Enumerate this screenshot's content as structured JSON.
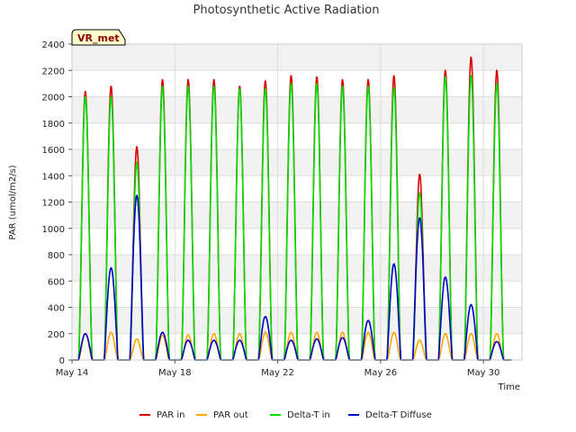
{
  "chart_data": {
    "type": "line",
    "title": "Photosynthetic Active Radiation",
    "xlabel": "Time",
    "ylabel": "PAR (umol/m2/s)",
    "badge": "VR_met",
    "xlim": [
      14,
      31.5
    ],
    "ylim": [
      0,
      2400
    ],
    "yticks": [
      0,
      200,
      400,
      600,
      800,
      1000,
      1200,
      1400,
      1600,
      1800,
      2000,
      2200,
      2400
    ],
    "xticks": [
      {
        "value": 14,
        "label": "May 14"
      },
      {
        "value": 18,
        "label": "May 18"
      },
      {
        "value": 22,
        "label": "May 22"
      },
      {
        "value": 26,
        "label": "May 26"
      },
      {
        "value": 30,
        "label": "May 30"
      }
    ],
    "grid": true,
    "legend_position": "bottom",
    "days": [
      14.5,
      15.5,
      16.5,
      17.5,
      18.5,
      19.5,
      20.5,
      21.5,
      22.5,
      23.5,
      24.5,
      25.5,
      26.5,
      27.5,
      28.5,
      29.5,
      30.5
    ],
    "series": [
      {
        "name": "PAR in",
        "color": "#dd0000",
        "values": [
          2040,
          2080,
          1620,
          2130,
          2130,
          2130,
          2080,
          2120,
          2160,
          2150,
          2130,
          2130,
          2160,
          1410,
          2200,
          2300,
          2200
        ]
      },
      {
        "name": "PAR out",
        "color": "#ffa500",
        "values": [
          200,
          210,
          160,
          190,
          190,
          200,
          200,
          210,
          210,
          210,
          210,
          210,
          210,
          150,
          200,
          200,
          200
        ]
      },
      {
        "name": "Delta-T in",
        "color": "#00dd00",
        "values": [
          2000,
          2000,
          1500,
          2080,
          2080,
          2080,
          2060,
          2060,
          2100,
          2100,
          2080,
          2080,
          2070,
          1270,
          2150,
          2160,
          2100
        ]
      },
      {
        "name": "Delta-T Diffuse",
        "color": "#0000cc",
        "values": [
          200,
          700,
          1250,
          210,
          150,
          150,
          150,
          330,
          150,
          160,
          170,
          300,
          730,
          1080,
          630,
          420,
          140
        ]
      }
    ]
  }
}
